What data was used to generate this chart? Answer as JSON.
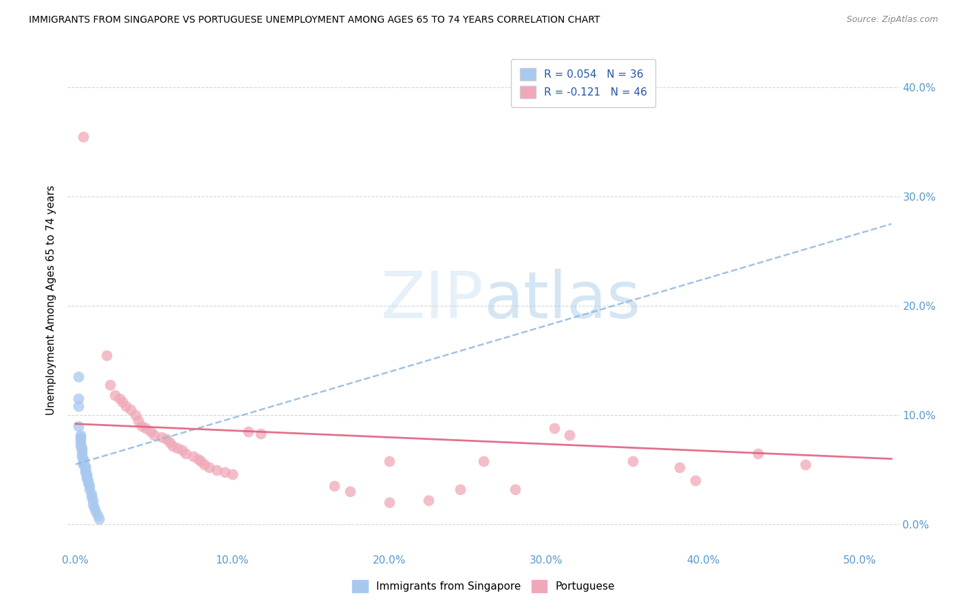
{
  "title": "IMMIGRANTS FROM SINGAPORE VS PORTUGUESE UNEMPLOYMENT AMONG AGES 65 TO 74 YEARS CORRELATION CHART",
  "source": "Source: ZipAtlas.com",
  "xlabel_ticks": [
    "0.0%",
    "10.0%",
    "20.0%",
    "30.0%",
    "40.0%",
    "50.0%"
  ],
  "xlabel_vals": [
    0.0,
    0.1,
    0.2,
    0.3,
    0.4,
    0.5
  ],
  "ylabel_ticks": [
    "0.0%",
    "10.0%",
    "20.0%",
    "30.0%",
    "40.0%"
  ],
  "ylabel_vals": [
    0.0,
    0.1,
    0.2,
    0.3,
    0.4
  ],
  "xlim": [
    -0.005,
    0.525
  ],
  "ylim": [
    -0.025,
    0.435
  ],
  "legend1_label": "R = 0.054   N = 36",
  "legend2_label": "R = -0.121   N = 46",
  "legend_xlabel": "Immigrants from Singapore",
  "legend_ylabel": "Portuguese",
  "watermark_zip": "ZIP",
  "watermark_atlas": "atlas",
  "singapore_color": "#a8c8f0",
  "portuguese_color": "#f0a8b8",
  "singapore_line_color": "#90b8e0",
  "portuguese_line_color": "#e06080",
  "singapore_scatter": [
    [
      0.002,
      0.135
    ],
    [
      0.002,
      0.115
    ],
    [
      0.002,
      0.108
    ],
    [
      0.002,
      0.09
    ],
    [
      0.003,
      0.082
    ],
    [
      0.003,
      0.08
    ],
    [
      0.003,
      0.078
    ],
    [
      0.003,
      0.075
    ],
    [
      0.003,
      0.072
    ],
    [
      0.004,
      0.07
    ],
    [
      0.004,
      0.068
    ],
    [
      0.004,
      0.065
    ],
    [
      0.004,
      0.062
    ],
    [
      0.005,
      0.06
    ],
    [
      0.005,
      0.058
    ],
    [
      0.005,
      0.056
    ],
    [
      0.005,
      0.055
    ],
    [
      0.006,
      0.053
    ],
    [
      0.006,
      0.052
    ],
    [
      0.006,
      0.05
    ],
    [
      0.006,
      0.048
    ],
    [
      0.007,
      0.046
    ],
    [
      0.007,
      0.044
    ],
    [
      0.007,
      0.042
    ],
    [
      0.008,
      0.04
    ],
    [
      0.008,
      0.038
    ],
    [
      0.009,
      0.035
    ],
    [
      0.009,
      0.032
    ],
    [
      0.01,
      0.028
    ],
    [
      0.01,
      0.025
    ],
    [
      0.011,
      0.022
    ],
    [
      0.011,
      0.018
    ],
    [
      0.012,
      0.015
    ],
    [
      0.013,
      0.012
    ],
    [
      0.014,
      0.008
    ],
    [
      0.015,
      0.005
    ]
  ],
  "portuguese_scatter": [
    [
      0.005,
      0.355
    ],
    [
      0.02,
      0.155
    ],
    [
      0.022,
      0.128
    ],
    [
      0.025,
      0.118
    ],
    [
      0.028,
      0.115
    ],
    [
      0.03,
      0.112
    ],
    [
      0.032,
      0.108
    ],
    [
      0.035,
      0.105
    ],
    [
      0.038,
      0.1
    ],
    [
      0.04,
      0.095
    ],
    [
      0.042,
      0.09
    ],
    [
      0.045,
      0.088
    ],
    [
      0.048,
      0.085
    ],
    [
      0.05,
      0.082
    ],
    [
      0.055,
      0.08
    ],
    [
      0.058,
      0.078
    ],
    [
      0.06,
      0.075
    ],
    [
      0.062,
      0.072
    ],
    [
      0.065,
      0.07
    ],
    [
      0.068,
      0.068
    ],
    [
      0.07,
      0.065
    ],
    [
      0.075,
      0.062
    ],
    [
      0.078,
      0.06
    ],
    [
      0.08,
      0.058
    ],
    [
      0.082,
      0.055
    ],
    [
      0.085,
      0.052
    ],
    [
      0.09,
      0.05
    ],
    [
      0.095,
      0.048
    ],
    [
      0.1,
      0.046
    ],
    [
      0.11,
      0.085
    ],
    [
      0.118,
      0.083
    ],
    [
      0.165,
      0.035
    ],
    [
      0.175,
      0.03
    ],
    [
      0.2,
      0.058
    ],
    [
      0.225,
      0.022
    ],
    [
      0.245,
      0.032
    ],
    [
      0.26,
      0.058
    ],
    [
      0.28,
      0.032
    ],
    [
      0.305,
      0.088
    ],
    [
      0.315,
      0.082
    ],
    [
      0.355,
      0.058
    ],
    [
      0.385,
      0.052
    ],
    [
      0.395,
      0.04
    ],
    [
      0.435,
      0.065
    ],
    [
      0.465,
      0.055
    ],
    [
      0.2,
      0.02
    ]
  ],
  "singapore_trend_x": [
    0.0,
    0.52
  ],
  "singapore_trend_y": [
    0.055,
    0.275
  ],
  "portuguese_trend_x": [
    0.0,
    0.52
  ],
  "portuguese_trend_y": [
    0.092,
    0.06
  ]
}
